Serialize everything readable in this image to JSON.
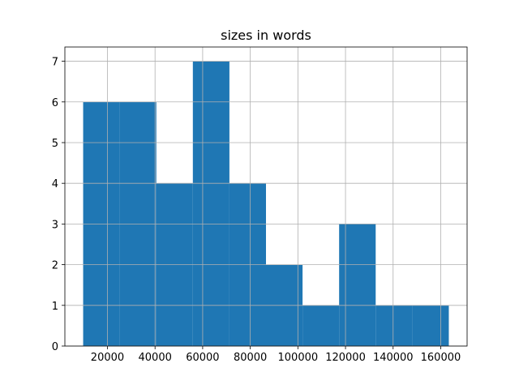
{
  "chart_data": {
    "type": "histogram",
    "title": "sizes in words",
    "bins": [
      9800,
      25160,
      40520,
      55880,
      71240,
      86600,
      101960,
      117320,
      132680,
      148040,
      163400
    ],
    "values": [
      6,
      6,
      4,
      7,
      4,
      2,
      1,
      3,
      1,
      1
    ],
    "color": "#1f77b4",
    "xlim": [
      2120,
      171080
    ],
    "xticks": [
      20000,
      40000,
      60000,
      80000,
      100000,
      120000,
      140000,
      160000
    ],
    "ylim": [
      0,
      7.35
    ],
    "yticks": [
      0,
      1,
      2,
      3,
      4,
      5,
      6,
      7
    ],
    "grid": true
  }
}
